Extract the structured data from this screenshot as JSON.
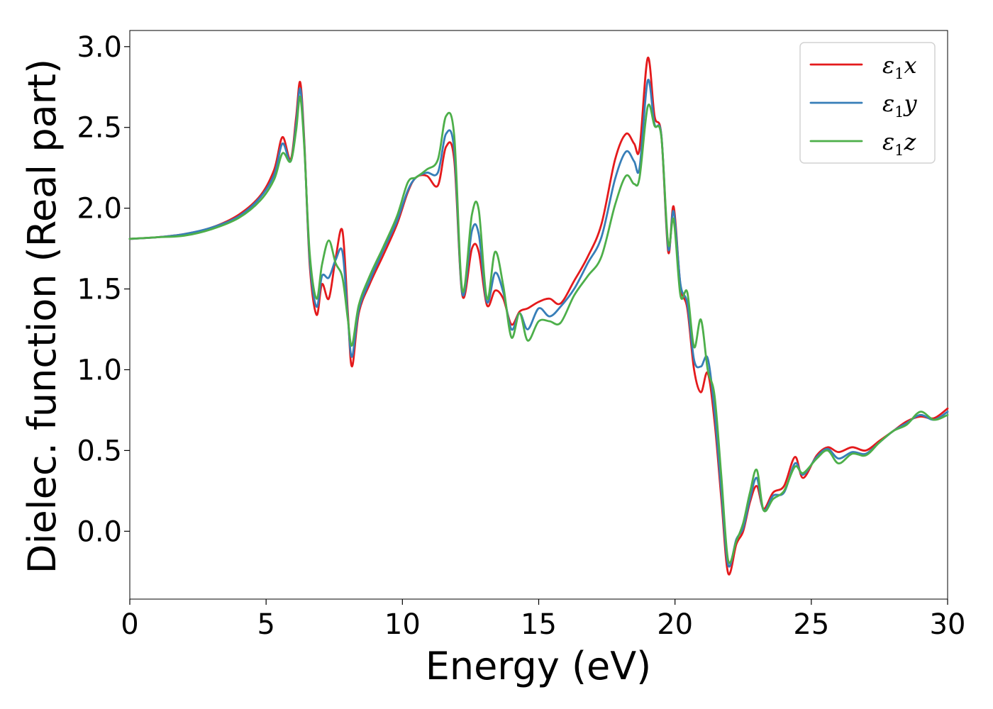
{
  "chart_data": {
    "type": "line",
    "xlabel": "Energy (eV)",
    "ylabel": "Dielec. function (Real part)",
    "xlim": [
      0,
      30
    ],
    "ylim": [
      -0.42,
      3.1
    ],
    "x_ticks": [
      0,
      5,
      10,
      15,
      20,
      25,
      30
    ],
    "y_ticks": [
      0.0,
      0.5,
      1.0,
      1.5,
      2.0,
      2.5,
      3.0
    ],
    "x_tick_labels": [
      "0",
      "5",
      "10",
      "15",
      "20",
      "25",
      "30"
    ],
    "y_tick_labels": [
      "0.0",
      "0.5",
      "1.0",
      "1.5",
      "2.0",
      "2.5",
      "3.0"
    ],
    "grid": false,
    "legend_position": "top-right",
    "series": [
      {
        "name": "ε1x",
        "label_main": "ε",
        "label_sub": "1",
        "label_var": "x",
        "color": "#e41a1c",
        "points": [
          [
            0.0,
            1.81
          ],
          [
            1.0,
            1.82
          ],
          [
            2.0,
            1.84
          ],
          [
            3.0,
            1.88
          ],
          [
            4.0,
            1.96
          ],
          [
            4.8,
            2.08
          ],
          [
            5.3,
            2.24
          ],
          [
            5.6,
            2.44
          ],
          [
            5.9,
            2.3
          ],
          [
            6.1,
            2.56
          ],
          [
            6.25,
            2.78
          ],
          [
            6.4,
            2.42
          ],
          [
            6.6,
            1.65
          ],
          [
            6.85,
            1.34
          ],
          [
            7.05,
            1.53
          ],
          [
            7.3,
            1.44
          ],
          [
            7.55,
            1.69
          ],
          [
            7.8,
            1.86
          ],
          [
            8.0,
            1.35
          ],
          [
            8.15,
            1.02
          ],
          [
            8.4,
            1.35
          ],
          [
            8.8,
            1.53
          ],
          [
            9.3,
            1.71
          ],
          [
            9.8,
            1.9
          ],
          [
            10.2,
            2.1
          ],
          [
            10.5,
            2.19
          ],
          [
            10.9,
            2.2
          ],
          [
            11.3,
            2.14
          ],
          [
            11.6,
            2.38
          ],
          [
            11.9,
            2.3
          ],
          [
            12.2,
            1.46
          ],
          [
            12.55,
            1.75
          ],
          [
            12.8,
            1.73
          ],
          [
            13.1,
            1.4
          ],
          [
            13.4,
            1.49
          ],
          [
            13.7,
            1.44
          ],
          [
            14.0,
            1.28
          ],
          [
            14.3,
            1.36
          ],
          [
            14.6,
            1.38
          ],
          [
            15.0,
            1.42
          ],
          [
            15.4,
            1.44
          ],
          [
            15.8,
            1.41
          ],
          [
            16.3,
            1.55
          ],
          [
            16.8,
            1.7
          ],
          [
            17.3,
            1.9
          ],
          [
            17.8,
            2.3
          ],
          [
            18.2,
            2.46
          ],
          [
            18.5,
            2.4
          ],
          [
            18.7,
            2.37
          ],
          [
            19.0,
            2.93
          ],
          [
            19.25,
            2.57
          ],
          [
            19.5,
            2.45
          ],
          [
            19.75,
            1.73
          ],
          [
            19.95,
            2.01
          ],
          [
            20.2,
            1.52
          ],
          [
            20.45,
            1.38
          ],
          [
            20.7,
            1.0
          ],
          [
            20.95,
            0.86
          ],
          [
            21.2,
            0.98
          ],
          [
            21.45,
            0.68
          ],
          [
            21.7,
            0.2
          ],
          [
            21.95,
            -0.26
          ],
          [
            22.25,
            -0.08
          ],
          [
            22.5,
            0.0
          ],
          [
            22.75,
            0.18
          ],
          [
            23.0,
            0.28
          ],
          [
            23.25,
            0.14
          ],
          [
            23.6,
            0.24
          ],
          [
            24.0,
            0.28
          ],
          [
            24.4,
            0.46
          ],
          [
            24.7,
            0.33
          ],
          [
            25.2,
            0.47
          ],
          [
            25.6,
            0.52
          ],
          [
            26.0,
            0.49
          ],
          [
            26.5,
            0.52
          ],
          [
            27.0,
            0.5
          ],
          [
            27.5,
            0.56
          ],
          [
            28.0,
            0.62
          ],
          [
            28.5,
            0.68
          ],
          [
            29.0,
            0.71
          ],
          [
            29.5,
            0.7
          ],
          [
            30.0,
            0.76
          ]
        ]
      },
      {
        "name": "ε1y",
        "label_main": "ε",
        "label_sub": "1",
        "label_var": "y",
        "color": "#377eb8",
        "points": [
          [
            0.0,
            1.81
          ],
          [
            1.0,
            1.82
          ],
          [
            2.0,
            1.84
          ],
          [
            3.0,
            1.88
          ],
          [
            4.0,
            1.95
          ],
          [
            4.8,
            2.07
          ],
          [
            5.3,
            2.21
          ],
          [
            5.6,
            2.4
          ],
          [
            5.9,
            2.29
          ],
          [
            6.1,
            2.52
          ],
          [
            6.25,
            2.74
          ],
          [
            6.4,
            2.4
          ],
          [
            6.6,
            1.68
          ],
          [
            6.85,
            1.39
          ],
          [
            7.05,
            1.58
          ],
          [
            7.3,
            1.57
          ],
          [
            7.55,
            1.68
          ],
          [
            7.8,
            1.73
          ],
          [
            8.0,
            1.32
          ],
          [
            8.15,
            1.08
          ],
          [
            8.4,
            1.37
          ],
          [
            8.8,
            1.55
          ],
          [
            9.3,
            1.74
          ],
          [
            9.8,
            1.92
          ],
          [
            10.2,
            2.11
          ],
          [
            10.5,
            2.19
          ],
          [
            10.9,
            2.22
          ],
          [
            11.3,
            2.22
          ],
          [
            11.6,
            2.46
          ],
          [
            11.9,
            2.36
          ],
          [
            12.2,
            1.47
          ],
          [
            12.55,
            1.86
          ],
          [
            12.8,
            1.84
          ],
          [
            13.1,
            1.42
          ],
          [
            13.4,
            1.6
          ],
          [
            13.7,
            1.48
          ],
          [
            14.0,
            1.25
          ],
          [
            14.3,
            1.35
          ],
          [
            14.6,
            1.25
          ],
          [
            15.0,
            1.38
          ],
          [
            15.4,
            1.33
          ],
          [
            15.8,
            1.39
          ],
          [
            16.3,
            1.5
          ],
          [
            16.8,
            1.66
          ],
          [
            17.3,
            1.82
          ],
          [
            17.8,
            2.18
          ],
          [
            18.2,
            2.35
          ],
          [
            18.5,
            2.29
          ],
          [
            18.7,
            2.25
          ],
          [
            19.0,
            2.79
          ],
          [
            19.25,
            2.52
          ],
          [
            19.5,
            2.45
          ],
          [
            19.75,
            1.75
          ],
          [
            19.95,
            1.98
          ],
          [
            20.2,
            1.53
          ],
          [
            20.45,
            1.41
          ],
          [
            20.7,
            1.06
          ],
          [
            20.95,
            1.02
          ],
          [
            21.2,
            1.07
          ],
          [
            21.45,
            0.74
          ],
          [
            21.7,
            0.25
          ],
          [
            21.95,
            -0.21
          ],
          [
            22.25,
            -0.05
          ],
          [
            22.5,
            0.02
          ],
          [
            22.75,
            0.2
          ],
          [
            23.0,
            0.33
          ],
          [
            23.25,
            0.13
          ],
          [
            23.6,
            0.22
          ],
          [
            24.0,
            0.24
          ],
          [
            24.4,
            0.42
          ],
          [
            24.7,
            0.35
          ],
          [
            25.2,
            0.46
          ],
          [
            25.6,
            0.51
          ],
          [
            26.0,
            0.45
          ],
          [
            26.5,
            0.49
          ],
          [
            27.0,
            0.48
          ],
          [
            27.5,
            0.55
          ],
          [
            28.0,
            0.62
          ],
          [
            28.5,
            0.67
          ],
          [
            29.0,
            0.72
          ],
          [
            29.5,
            0.69
          ],
          [
            30.0,
            0.74
          ]
        ]
      },
      {
        "name": "ε1z",
        "label_main": "ε",
        "label_sub": "1",
        "label_var": "z",
        "color": "#4daf4a",
        "points": [
          [
            0.0,
            1.81
          ],
          [
            1.0,
            1.82
          ],
          [
            2.0,
            1.83
          ],
          [
            3.0,
            1.87
          ],
          [
            4.0,
            1.94
          ],
          [
            4.8,
            2.05
          ],
          [
            5.3,
            2.18
          ],
          [
            5.6,
            2.34
          ],
          [
            5.9,
            2.29
          ],
          [
            6.1,
            2.48
          ],
          [
            6.25,
            2.69
          ],
          [
            6.4,
            2.38
          ],
          [
            6.6,
            1.72
          ],
          [
            6.85,
            1.44
          ],
          [
            7.05,
            1.65
          ],
          [
            7.3,
            1.8
          ],
          [
            7.55,
            1.66
          ],
          [
            7.8,
            1.57
          ],
          [
            8.0,
            1.31
          ],
          [
            8.15,
            1.15
          ],
          [
            8.4,
            1.4
          ],
          [
            8.8,
            1.58
          ],
          [
            9.3,
            1.76
          ],
          [
            9.8,
            1.95
          ],
          [
            10.2,
            2.16
          ],
          [
            10.5,
            2.19
          ],
          [
            10.9,
            2.24
          ],
          [
            11.3,
            2.3
          ],
          [
            11.6,
            2.57
          ],
          [
            11.9,
            2.45
          ],
          [
            12.2,
            1.49
          ],
          [
            12.55,
            1.96
          ],
          [
            12.8,
            1.99
          ],
          [
            13.1,
            1.44
          ],
          [
            13.4,
            1.73
          ],
          [
            13.7,
            1.52
          ],
          [
            14.0,
            1.2
          ],
          [
            14.3,
            1.35
          ],
          [
            14.6,
            1.18
          ],
          [
            15.0,
            1.3
          ],
          [
            15.4,
            1.3
          ],
          [
            15.8,
            1.29
          ],
          [
            16.3,
            1.46
          ],
          [
            16.8,
            1.58
          ],
          [
            17.3,
            1.7
          ],
          [
            17.8,
            2.02
          ],
          [
            18.2,
            2.2
          ],
          [
            18.5,
            2.15
          ],
          [
            18.7,
            2.19
          ],
          [
            19.0,
            2.63
          ],
          [
            19.25,
            2.51
          ],
          [
            19.5,
            2.44
          ],
          [
            19.75,
            1.78
          ],
          [
            19.95,
            1.93
          ],
          [
            20.2,
            1.46
          ],
          [
            20.45,
            1.48
          ],
          [
            20.7,
            1.14
          ],
          [
            20.95,
            1.31
          ],
          [
            21.2,
            1.0
          ],
          [
            21.45,
            0.84
          ],
          [
            21.7,
            0.34
          ],
          [
            21.95,
            -0.18
          ],
          [
            22.25,
            -0.06
          ],
          [
            22.5,
            0.05
          ],
          [
            22.75,
            0.24
          ],
          [
            23.0,
            0.38
          ],
          [
            23.25,
            0.13
          ],
          [
            23.6,
            0.2
          ],
          [
            24.0,
            0.25
          ],
          [
            24.4,
            0.4
          ],
          [
            24.7,
            0.36
          ],
          [
            25.2,
            0.45
          ],
          [
            25.6,
            0.5
          ],
          [
            26.0,
            0.42
          ],
          [
            26.5,
            0.48
          ],
          [
            27.0,
            0.47
          ],
          [
            27.5,
            0.55
          ],
          [
            28.0,
            0.62
          ],
          [
            28.5,
            0.66
          ],
          [
            29.0,
            0.74
          ],
          [
            29.5,
            0.69
          ],
          [
            30.0,
            0.72
          ]
        ]
      }
    ]
  }
}
